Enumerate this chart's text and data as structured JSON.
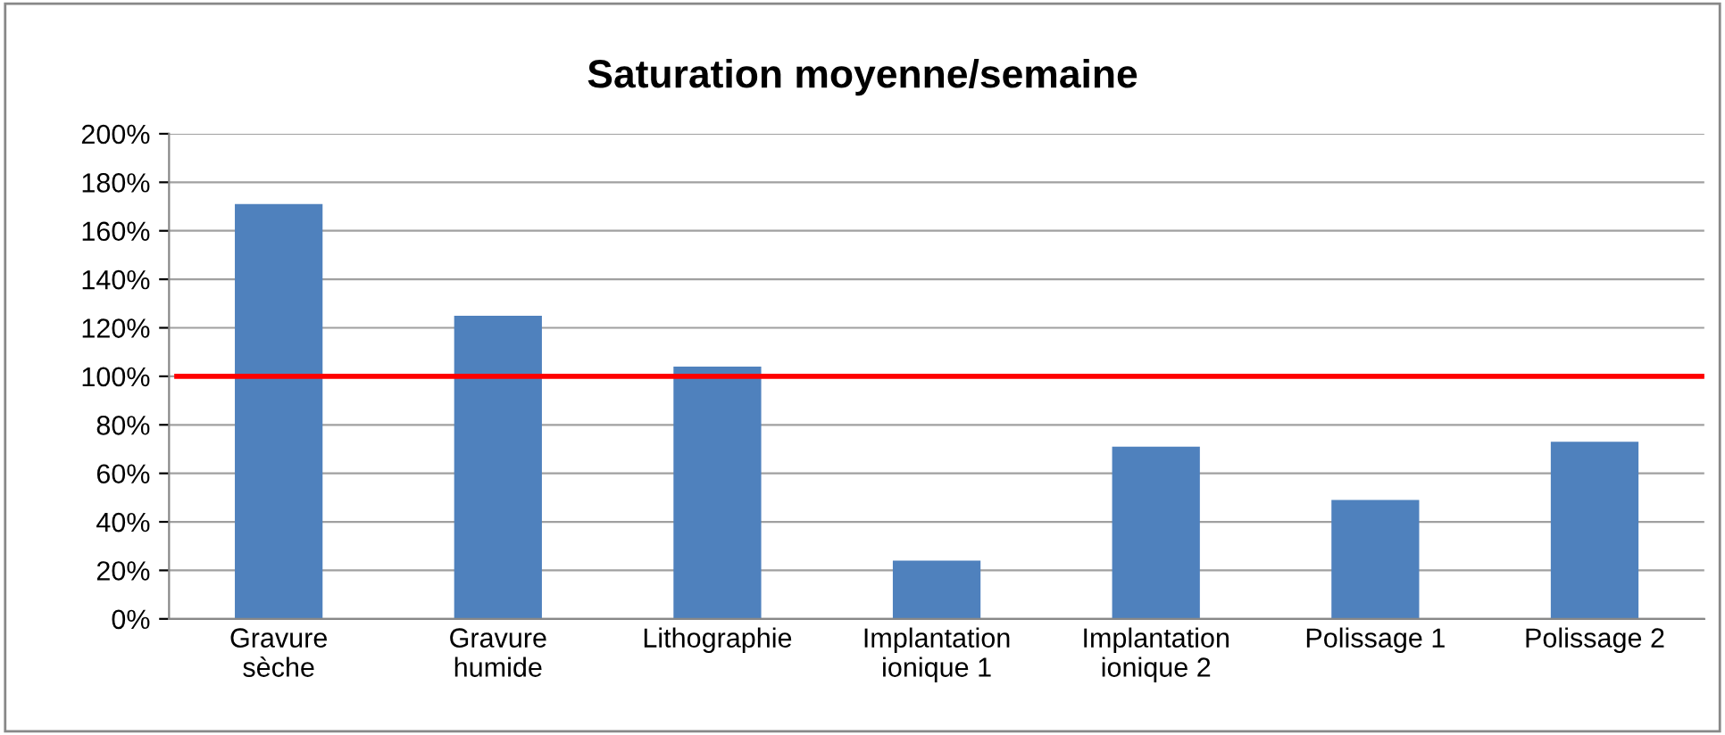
{
  "chart_data": {
    "type": "bar",
    "title": "Saturation moyenne/semaine",
    "categories": [
      "Gravure\nsèche",
      "Gravure\nhumide",
      "Lithographie",
      "Implantation\nionique 1",
      "Implantation\nionique 2",
      "Polissage 1",
      "Polissage 2"
    ],
    "values": [
      171,
      125,
      104,
      24,
      71,
      49,
      73
    ],
    "color": "#4f81bd",
    "ylim": [
      0,
      200
    ],
    "yticks": [
      {
        "value": 0,
        "label": "0%"
      },
      {
        "value": 20,
        "label": "20%"
      },
      {
        "value": 40,
        "label": "40%"
      },
      {
        "value": 60,
        "label": "60%"
      },
      {
        "value": 80,
        "label": "80%"
      },
      {
        "value": 100,
        "label": "100%"
      },
      {
        "value": 120,
        "label": "120%"
      },
      {
        "value": 140,
        "label": "140%"
      },
      {
        "value": 160,
        "label": "160%"
      },
      {
        "value": 180,
        "label": "180%"
      },
      {
        "value": 200,
        "label": "200%"
      }
    ],
    "grid": "y",
    "ref_lines": [
      {
        "axis": "y",
        "value": 100,
        "color": "#ff0000"
      }
    ]
  }
}
